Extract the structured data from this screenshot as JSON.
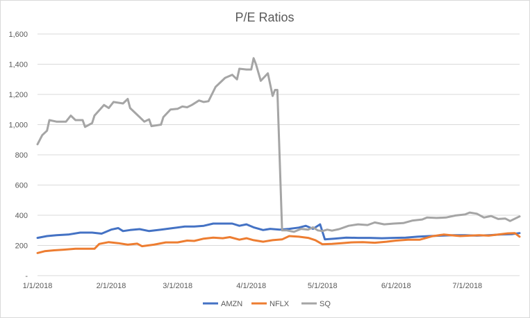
{
  "chart_data": {
    "type": "line",
    "title": "P/E Ratios",
    "xlabel": "",
    "ylabel": "",
    "ylim": [
      0,
      1600
    ],
    "y_ticks": [
      0,
      200,
      400,
      600,
      800,
      1000,
      1200,
      1400,
      1600
    ],
    "y_tick_labels": [
      "-",
      "200",
      "400",
      "600",
      "800",
      "1,000",
      "1,200",
      "1,400",
      "1,600"
    ],
    "x_range": [
      "2018-01-01",
      "2018-07-23"
    ],
    "x_ticks": [
      "1/1/2018",
      "2/1/2018",
      "3/1/2018",
      "4/1/2018",
      "5/1/2018",
      "6/1/2018",
      "7/1/2018"
    ],
    "grid": "horizontal",
    "legend_position": "bottom",
    "series": [
      {
        "name": "AMZN",
        "color": "#4472C4",
        "points": [
          [
            "2018-01-01",
            250
          ],
          [
            "2018-01-05",
            262
          ],
          [
            "2018-01-09",
            268
          ],
          [
            "2018-01-14",
            272
          ],
          [
            "2018-01-19",
            285
          ],
          [
            "2018-01-24",
            285
          ],
          [
            "2018-01-28",
            278
          ],
          [
            "2018-02-01",
            305
          ],
          [
            "2018-02-04",
            315
          ],
          [
            "2018-02-06",
            295
          ],
          [
            "2018-02-09",
            302
          ],
          [
            "2018-02-13",
            308
          ],
          [
            "2018-02-17",
            295
          ],
          [
            "2018-02-22",
            305
          ],
          [
            "2018-02-27",
            315
          ],
          [
            "2018-03-04",
            325
          ],
          [
            "2018-03-08",
            325
          ],
          [
            "2018-03-12",
            330
          ],
          [
            "2018-03-16",
            345
          ],
          [
            "2018-03-20",
            345
          ],
          [
            "2018-03-24",
            345
          ],
          [
            "2018-03-27",
            330
          ],
          [
            "2018-03-30",
            340
          ],
          [
            "2018-04-02",
            320
          ],
          [
            "2018-04-06",
            302
          ],
          [
            "2018-04-09",
            310
          ],
          [
            "2018-04-13",
            305
          ],
          [
            "2018-04-17",
            310
          ],
          [
            "2018-04-21",
            318
          ],
          [
            "2018-04-24",
            330
          ],
          [
            "2018-04-27",
            310
          ],
          [
            "2018-04-30",
            340
          ],
          [
            "2018-05-02",
            240
          ],
          [
            "2018-05-06",
            245
          ],
          [
            "2018-05-11",
            252
          ],
          [
            "2018-05-16",
            250
          ],
          [
            "2018-05-21",
            250
          ],
          [
            "2018-05-26",
            248
          ],
          [
            "2018-05-31",
            250
          ],
          [
            "2018-06-05",
            252
          ],
          [
            "2018-06-10",
            258
          ],
          [
            "2018-06-15",
            262
          ],
          [
            "2018-06-20",
            265
          ],
          [
            "2018-06-25",
            268
          ],
          [
            "2018-06-30",
            268
          ],
          [
            "2018-07-05",
            265
          ],
          [
            "2018-07-10",
            268
          ],
          [
            "2018-07-15",
            272
          ],
          [
            "2018-07-20",
            275
          ],
          [
            "2018-07-23",
            282
          ]
        ]
      },
      {
        "name": "NFLX",
        "color": "#ED7D31",
        "points": [
          [
            "2018-01-01",
            150
          ],
          [
            "2018-01-04",
            162
          ],
          [
            "2018-01-08",
            168
          ],
          [
            "2018-01-12",
            172
          ],
          [
            "2018-01-17",
            178
          ],
          [
            "2018-01-22",
            178
          ],
          [
            "2018-01-25",
            178
          ],
          [
            "2018-01-27",
            210
          ],
          [
            "2018-01-31",
            222
          ],
          [
            "2018-02-04",
            215
          ],
          [
            "2018-02-08",
            205
          ],
          [
            "2018-02-12",
            212
          ],
          [
            "2018-02-14",
            195
          ],
          [
            "2018-02-19",
            205
          ],
          [
            "2018-02-24",
            220
          ],
          [
            "2018-03-01",
            220
          ],
          [
            "2018-03-05",
            232
          ],
          [
            "2018-03-08",
            230
          ],
          [
            "2018-03-12",
            245
          ],
          [
            "2018-03-16",
            252
          ],
          [
            "2018-03-20",
            248
          ],
          [
            "2018-03-23",
            255
          ],
          [
            "2018-03-27",
            238
          ],
          [
            "2018-03-30",
            248
          ],
          [
            "2018-04-02",
            235
          ],
          [
            "2018-04-06",
            225
          ],
          [
            "2018-04-10",
            235
          ],
          [
            "2018-04-14",
            240
          ],
          [
            "2018-04-17",
            262
          ],
          [
            "2018-04-21",
            258
          ],
          [
            "2018-04-25",
            250
          ],
          [
            "2018-04-28",
            235
          ],
          [
            "2018-05-01",
            208
          ],
          [
            "2018-05-05",
            210
          ],
          [
            "2018-05-09",
            215
          ],
          [
            "2018-05-13",
            220
          ],
          [
            "2018-05-18",
            222
          ],
          [
            "2018-05-23",
            218
          ],
          [
            "2018-05-28",
            225
          ],
          [
            "2018-06-01",
            232
          ],
          [
            "2018-06-06",
            238
          ],
          [
            "2018-06-11",
            238
          ],
          [
            "2018-06-16",
            260
          ],
          [
            "2018-06-21",
            272
          ],
          [
            "2018-06-24",
            268
          ],
          [
            "2018-06-28",
            262
          ],
          [
            "2018-07-02",
            265
          ],
          [
            "2018-07-06",
            268
          ],
          [
            "2018-07-10",
            265
          ],
          [
            "2018-07-14",
            272
          ],
          [
            "2018-07-18",
            280
          ],
          [
            "2018-07-21",
            282
          ],
          [
            "2018-07-23",
            258
          ]
        ]
      },
      {
        "name": "SQ",
        "color": "#A5A5A5",
        "points": [
          [
            "2018-01-01",
            870
          ],
          [
            "2018-01-03",
            930
          ],
          [
            "2018-01-05",
            960
          ],
          [
            "2018-01-06",
            1030
          ],
          [
            "2018-01-09",
            1020
          ],
          [
            "2018-01-13",
            1020
          ],
          [
            "2018-01-15",
            1060
          ],
          [
            "2018-01-17",
            1030
          ],
          [
            "2018-01-20",
            1030
          ],
          [
            "2018-01-21",
            985
          ],
          [
            "2018-01-24",
            1010
          ],
          [
            "2018-01-25",
            1060
          ],
          [
            "2018-01-29",
            1130
          ],
          [
            "2018-01-31",
            1110
          ],
          [
            "2018-02-02",
            1150
          ],
          [
            "2018-02-06",
            1140
          ],
          [
            "2018-02-08",
            1170
          ],
          [
            "2018-02-09",
            1110
          ],
          [
            "2018-02-13",
            1050
          ],
          [
            "2018-02-15",
            1020
          ],
          [
            "2018-02-17",
            1035
          ],
          [
            "2018-02-18",
            990
          ],
          [
            "2018-02-22",
            1000
          ],
          [
            "2018-02-23",
            1050
          ],
          [
            "2018-02-26",
            1100
          ],
          [
            "2018-03-01",
            1105
          ],
          [
            "2018-03-03",
            1120
          ],
          [
            "2018-03-05",
            1115
          ],
          [
            "2018-03-07",
            1130
          ],
          [
            "2018-03-10",
            1160
          ],
          [
            "2018-03-12",
            1150
          ],
          [
            "2018-03-14",
            1155
          ],
          [
            "2018-03-17",
            1250
          ],
          [
            "2018-03-21",
            1310
          ],
          [
            "2018-03-24",
            1330
          ],
          [
            "2018-03-26",
            1300
          ],
          [
            "2018-03-27",
            1370
          ],
          [
            "2018-03-30",
            1365
          ],
          [
            "2018-04-01",
            1365
          ],
          [
            "2018-04-02",
            1440
          ],
          [
            "2018-04-03",
            1400
          ],
          [
            "2018-04-05",
            1290
          ],
          [
            "2018-04-08",
            1340
          ],
          [
            "2018-04-10",
            1190
          ],
          [
            "2018-04-11",
            1230
          ],
          [
            "2018-04-12",
            1230
          ],
          [
            "2018-04-14",
            300
          ],
          [
            "2018-04-16",
            300
          ],
          [
            "2018-04-19",
            290
          ],
          [
            "2018-04-22",
            310
          ],
          [
            "2018-04-25",
            305
          ],
          [
            "2018-04-27",
            320
          ],
          [
            "2018-04-29",
            300
          ],
          [
            "2018-05-01",
            295
          ],
          [
            "2018-05-03",
            305
          ],
          [
            "2018-05-05",
            298
          ],
          [
            "2018-05-08",
            308
          ],
          [
            "2018-05-12",
            330
          ],
          [
            "2018-05-16",
            340
          ],
          [
            "2018-05-20",
            335
          ],
          [
            "2018-05-23",
            352
          ],
          [
            "2018-05-27",
            340
          ],
          [
            "2018-05-31",
            345
          ],
          [
            "2018-06-04",
            348
          ],
          [
            "2018-06-08",
            365
          ],
          [
            "2018-06-12",
            372
          ],
          [
            "2018-06-14",
            385
          ],
          [
            "2018-06-18",
            382
          ],
          [
            "2018-06-22",
            385
          ],
          [
            "2018-06-26",
            398
          ],
          [
            "2018-06-30",
            405
          ],
          [
            "2018-07-02",
            418
          ],
          [
            "2018-07-05",
            410
          ],
          [
            "2018-07-08",
            385
          ],
          [
            "2018-07-11",
            395
          ],
          [
            "2018-07-14",
            375
          ],
          [
            "2018-07-17",
            378
          ],
          [
            "2018-07-19",
            362
          ],
          [
            "2018-07-23",
            392
          ]
        ]
      }
    ]
  }
}
